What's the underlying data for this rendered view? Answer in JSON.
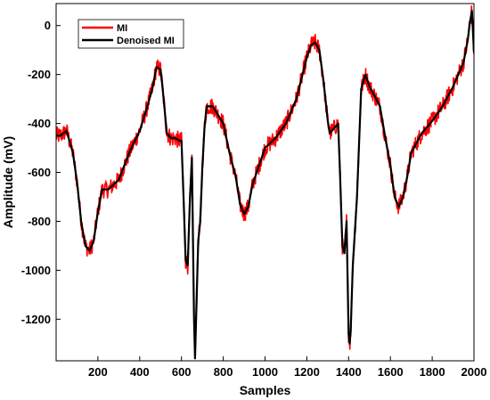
{
  "chart_data": {
    "type": "line",
    "title": "",
    "xlabel": "Samples",
    "ylabel": "Amplitude (mV)",
    "xlim": [
      0,
      2000
    ],
    "ylim": [
      -1370,
      90
    ],
    "x_ticks": [
      200,
      400,
      600,
      800,
      1000,
      1200,
      1400,
      1600,
      1800,
      2000
    ],
    "y_ticks": [
      0,
      -200,
      -400,
      -600,
      -800,
      -1000,
      -1200
    ],
    "grid": false,
    "legend_position": "top-left",
    "series": [
      {
        "name": "MI",
        "color": "#ff0000",
        "noisy": true,
        "x": [
          0,
          20,
          50,
          80,
          100,
          120,
          140,
          160,
          180,
          200,
          220,
          250,
          300,
          350,
          400,
          430,
          460,
          480,
          500,
          510,
          530,
          550,
          570,
          590,
          600,
          610,
          620,
          630,
          640,
          650,
          660,
          665,
          670,
          680,
          690,
          700,
          710,
          720,
          730,
          750,
          800,
          830,
          860,
          880,
          900,
          920,
          940,
          960,
          980,
          1000,
          1050,
          1100,
          1150,
          1200,
          1220,
          1240,
          1260,
          1280,
          1300,
          1310,
          1330,
          1350,
          1360,
          1370,
          1380,
          1390,
          1400,
          1405,
          1410,
          1420,
          1440,
          1460,
          1480,
          1500,
          1520,
          1550,
          1580,
          1600,
          1620,
          1640,
          1660,
          1680,
          1700,
          1750,
          1800,
          1850,
          1900,
          1950,
          1970,
          1980,
          1990,
          2000
        ],
        "y": [
          -450,
          -450,
          -430,
          -520,
          -640,
          -800,
          -900,
          -920,
          -880,
          -760,
          -670,
          -670,
          -630,
          -520,
          -430,
          -350,
          -260,
          -170,
          -180,
          -260,
          -440,
          -460,
          -460,
          -470,
          -470,
          -700,
          -960,
          -980,
          -720,
          -540,
          -1200,
          -1360,
          -1200,
          -880,
          -800,
          -580,
          -420,
          -330,
          -330,
          -330,
          -400,
          -520,
          -620,
          -730,
          -770,
          -740,
          -650,
          -600,
          -550,
          -500,
          -460,
          -400,
          -300,
          -130,
          -80,
          -70,
          -100,
          -230,
          -390,
          -440,
          -420,
          -400,
          -630,
          -900,
          -930,
          -800,
          -1260,
          -1300,
          -1250,
          -980,
          -700,
          -260,
          -200,
          -250,
          -280,
          -330,
          -480,
          -570,
          -700,
          -740,
          -700,
          -620,
          -520,
          -440,
          -390,
          -330,
          -250,
          -150,
          -60,
          10,
          60,
          -110
        ]
      },
      {
        "name": "Denoised MI",
        "color": "#000000",
        "noisy": false,
        "x": [
          0,
          20,
          50,
          80,
          100,
          120,
          140,
          160,
          180,
          200,
          220,
          250,
          300,
          350,
          400,
          430,
          460,
          480,
          500,
          510,
          530,
          550,
          570,
          590,
          600,
          610,
          620,
          630,
          640,
          650,
          660,
          665,
          670,
          680,
          690,
          700,
          710,
          720,
          730,
          750,
          800,
          830,
          860,
          880,
          900,
          920,
          940,
          960,
          980,
          1000,
          1050,
          1100,
          1150,
          1200,
          1220,
          1240,
          1260,
          1280,
          1300,
          1310,
          1330,
          1350,
          1360,
          1370,
          1380,
          1390,
          1400,
          1405,
          1410,
          1420,
          1440,
          1460,
          1480,
          1500,
          1520,
          1550,
          1580,
          1600,
          1620,
          1640,
          1660,
          1680,
          1700,
          1750,
          1800,
          1850,
          1900,
          1950,
          1970,
          1980,
          1990,
          2000
        ],
        "y": [
          -450,
          -450,
          -430,
          -520,
          -640,
          -800,
          -900,
          -920,
          -880,
          -760,
          -670,
          -670,
          -630,
          -520,
          -430,
          -350,
          -260,
          -170,
          -180,
          -260,
          -440,
          -460,
          -460,
          -470,
          -470,
          -700,
          -960,
          -980,
          -720,
          -540,
          -1200,
          -1360,
          -1200,
          -880,
          -800,
          -580,
          -420,
          -330,
          -330,
          -330,
          -400,
          -520,
          -620,
          -730,
          -770,
          -740,
          -650,
          -600,
          -550,
          -500,
          -460,
          -400,
          -300,
          -130,
          -80,
          -70,
          -100,
          -230,
          -390,
          -440,
          -420,
          -400,
          -630,
          -900,
          -930,
          -800,
          -1260,
          -1300,
          -1250,
          -980,
          -700,
          -260,
          -200,
          -250,
          -280,
          -330,
          -480,
          -570,
          -700,
          -740,
          -700,
          -620,
          -520,
          -440,
          -390,
          -330,
          -250,
          -150,
          -60,
          10,
          60,
          -110
        ]
      }
    ]
  }
}
